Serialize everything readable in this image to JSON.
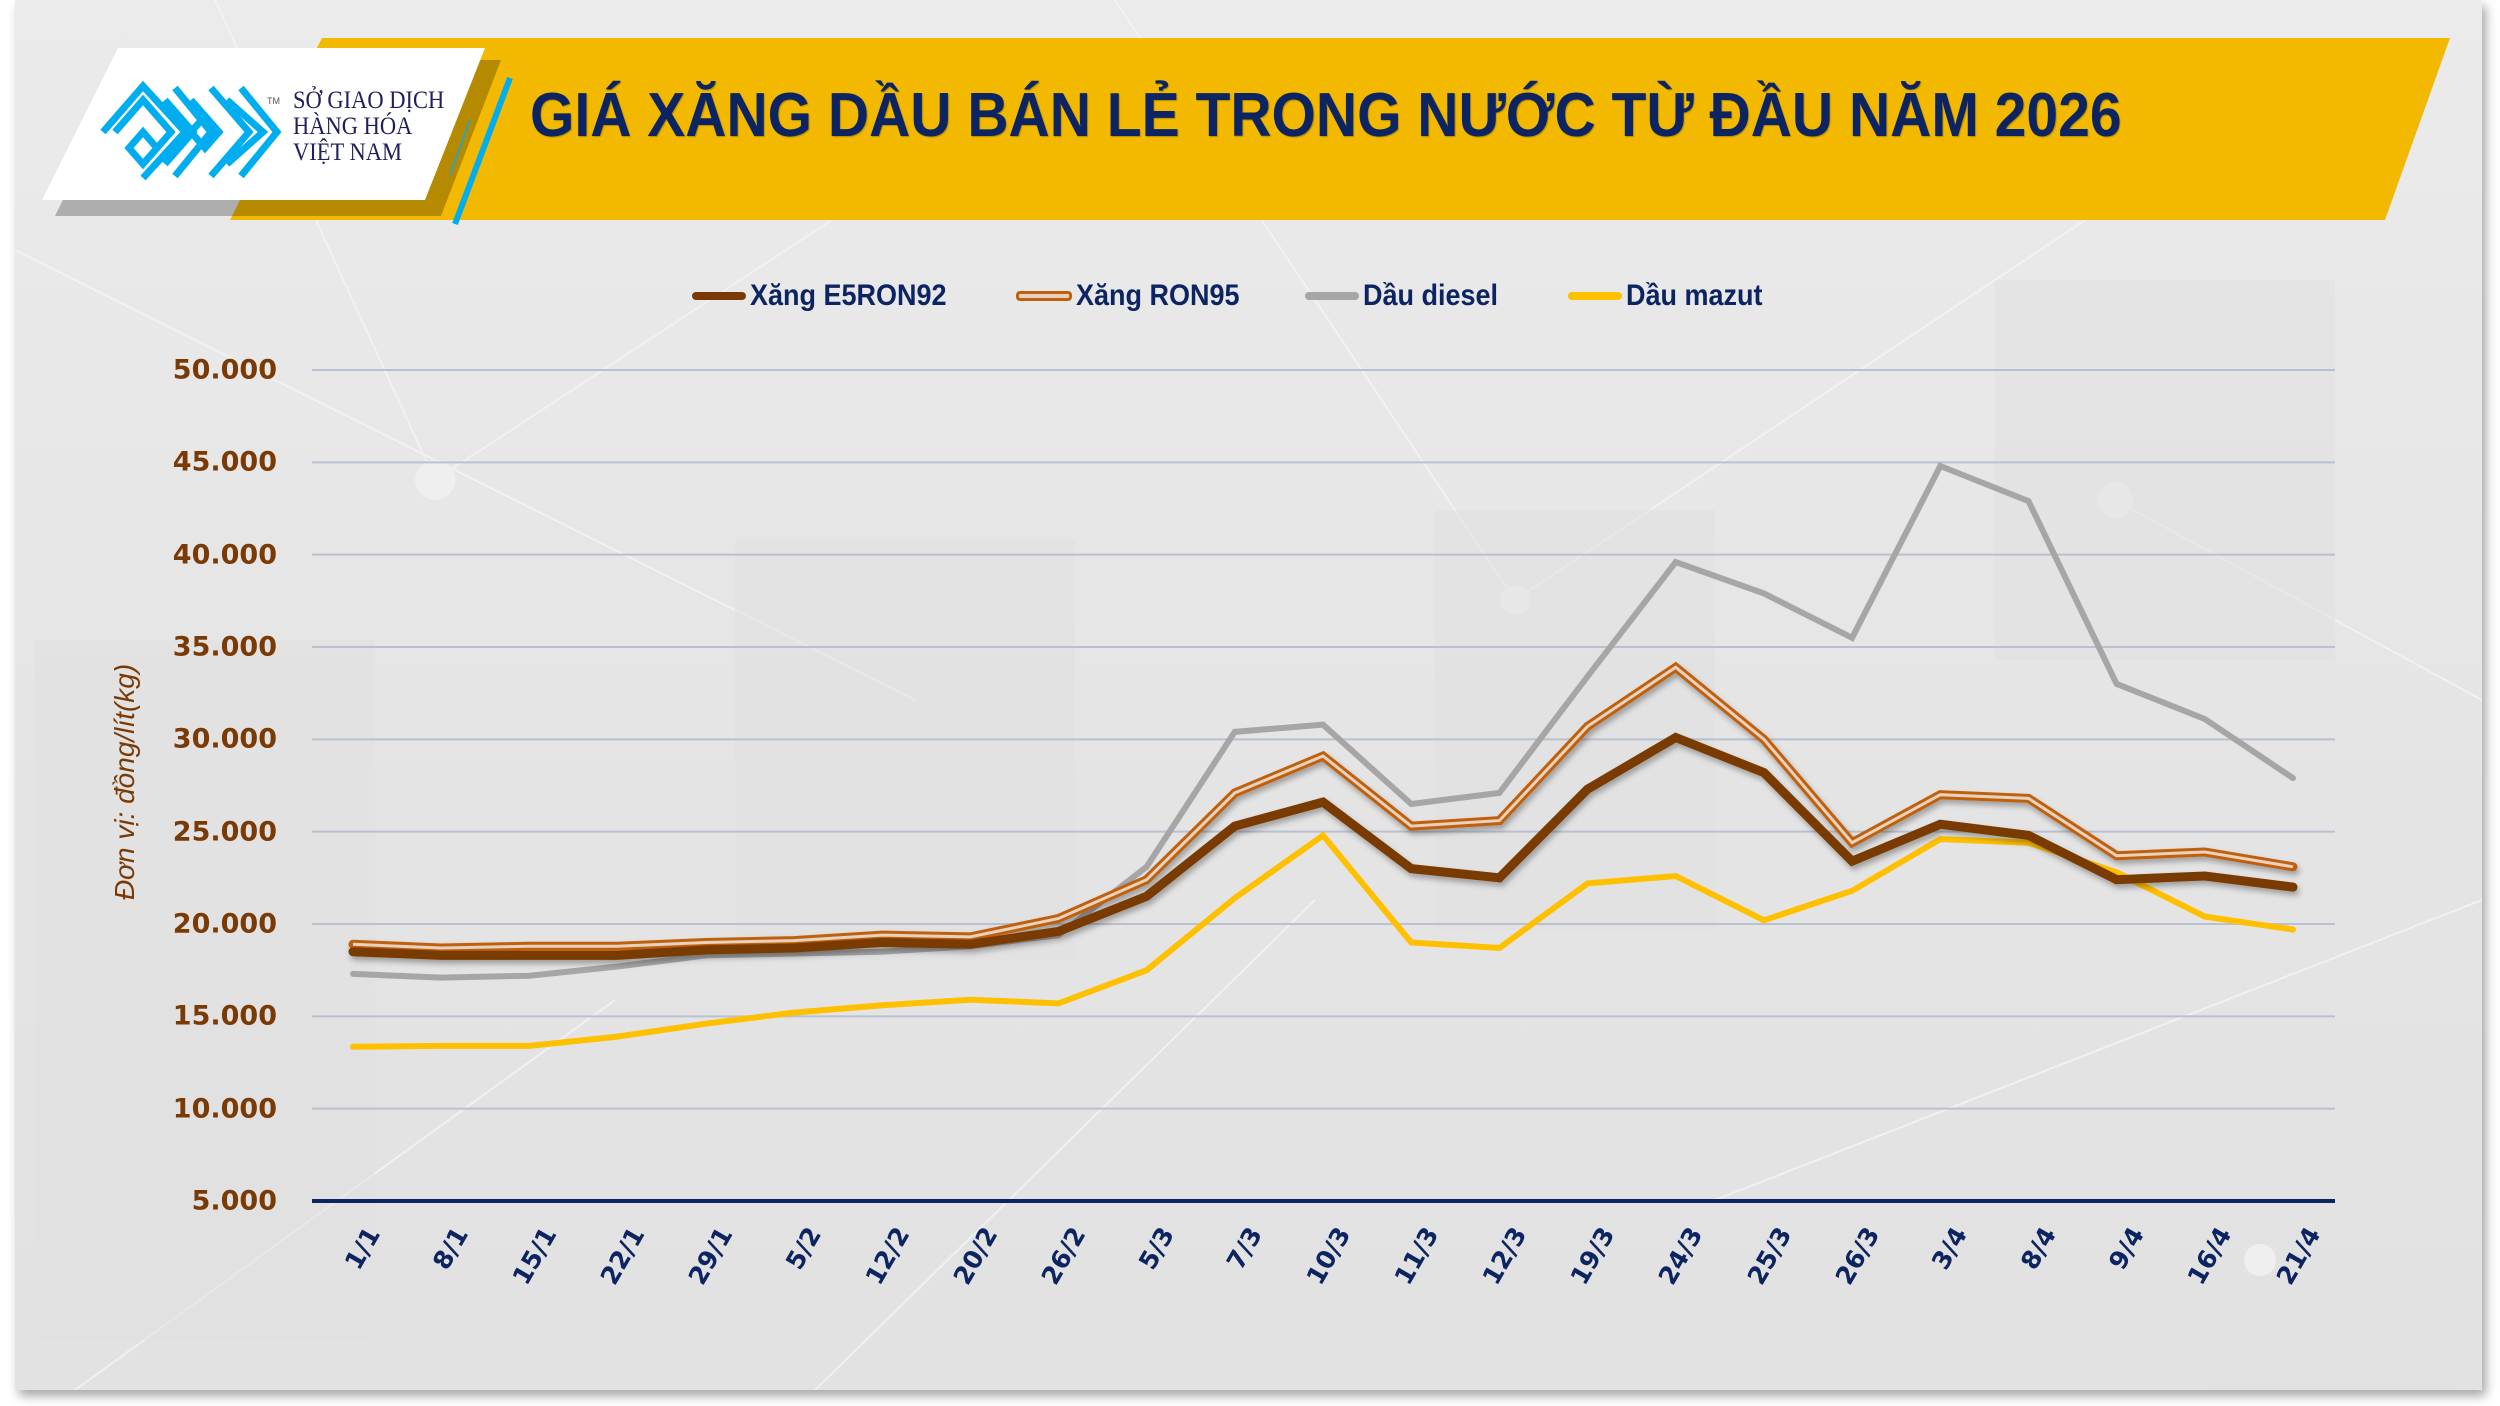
{
  "header": {
    "logo": {
      "icon": "sgd-hang-hoa-maze-logo-icon",
      "trademark": "TM",
      "lines": [
        "SỞ GIAO DỊCH",
        "HÀNG HÓA",
        "VIỆT NAM"
      ]
    },
    "title": "GIÁ XĂNG DẦU BÁN LẺ TRONG NƯỚC TỪ ĐẦU NĂM 2026"
  },
  "colors": {
    "banner": "#F2B900",
    "title": "#0C2461",
    "logo_blue": "#00AEEF",
    "axis": "#0C2461",
    "ytick": "#7A3A06",
    "grid": "#B9C0CF"
  },
  "legend": [
    {
      "label": "Xăng E5RON92",
      "color": "#7A3A06",
      "style": "solid"
    },
    {
      "label": "Xăng RON95",
      "color": "#C0600B",
      "style": "double"
    },
    {
      "label": "Dầu diesel",
      "color": "#A6A6A6",
      "style": "solid"
    },
    {
      "label": "Dầu mazut",
      "color": "#FFC000",
      "style": "solid"
    }
  ],
  "chart_data": {
    "type": "line",
    "title": "GIÁ XĂNG DẦU BÁN LẺ TRONG NƯỚC TỪ ĐẦU NĂM 2026",
    "xlabel": "",
    "ylabel": "Đơn vị: đồng/lít(kg)",
    "ylim": [
      5000,
      50000
    ],
    "yticks": [
      5000,
      10000,
      15000,
      20000,
      25000,
      30000,
      35000,
      40000,
      45000,
      50000
    ],
    "ytick_labels": [
      "5.000",
      "10.000",
      "15.000",
      "20.000",
      "25.000",
      "30.000",
      "35.000",
      "40.000",
      "45.000",
      "50.000"
    ],
    "grid": true,
    "legend_position": "top",
    "categories": [
      "1/1",
      "8/1",
      "15/1",
      "22/1",
      "29/1",
      "5/2",
      "12/2",
      "20/2",
      "26/2",
      "5/3",
      "7/3",
      "10/3",
      "11/3",
      "12/3",
      "19/3",
      "24/3",
      "25/3",
      "26/3",
      "3/4",
      "8/4",
      "9/4",
      "16/4",
      "21/4"
    ],
    "series": [
      {
        "name": "Xăng E5RON92",
        "values": [
          18500,
          18300,
          18300,
          18300,
          18600,
          18700,
          19000,
          18900,
          19600,
          21500,
          25300,
          26600,
          23000,
          22500,
          27300,
          30100,
          28200,
          23400,
          25400,
          24800,
          22400,
          22600,
          22000
        ]
      },
      {
        "name": "Xăng RON95",
        "values": [
          18900,
          18700,
          18800,
          18800,
          19000,
          19100,
          19400,
          19300,
          20300,
          22400,
          27100,
          29100,
          25300,
          25600,
          30700,
          33900,
          30000,
          24400,
          27000,
          26800,
          23700,
          23900,
          23100
        ]
      },
      {
        "name": "Dầu diesel",
        "values": [
          17300,
          17100,
          17200,
          17700,
          18300,
          18400,
          18500,
          18800,
          19400,
          23100,
          30400,
          30800,
          26500,
          27100,
          33400,
          39600,
          37900,
          35500,
          44800,
          42900,
          33000,
          31100,
          27900
        ]
      },
      {
        "name": "Dầu mazut",
        "values": [
          13350,
          13400,
          13400,
          13900,
          14600,
          15200,
          15600,
          15900,
          15700,
          17500,
          21400,
          24800,
          19000,
          18700,
          22200,
          22600,
          20200,
          21800,
          24600,
          24400,
          22800,
          20400,
          19700
        ]
      }
    ]
  }
}
